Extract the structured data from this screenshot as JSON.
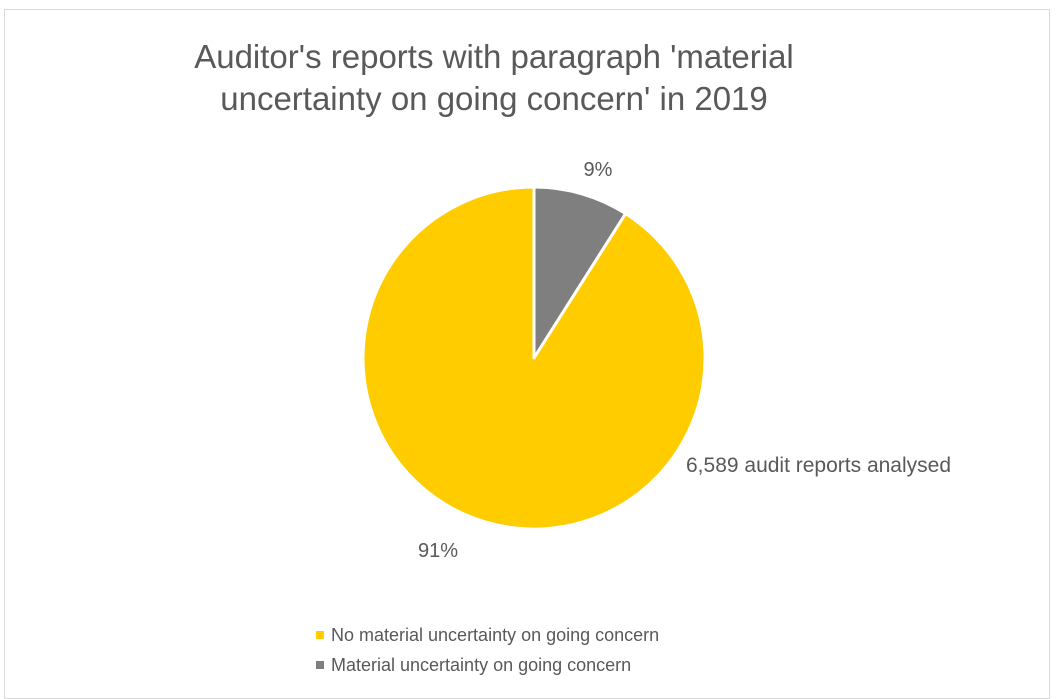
{
  "chart_data": {
    "type": "pie",
    "title_lines": [
      "Auditor's reports with paragraph 'material",
      "uncertainty on going concern' in 2019"
    ],
    "slices": [
      {
        "name": "Material uncertainty on going concern",
        "value": 9,
        "label": "9%",
        "color": "#7f7f7f"
      },
      {
        "name": "No material uncertainty on going concern",
        "value": 91,
        "label": "91%",
        "color": "#ffcc00"
      }
    ],
    "annotation": "6,589 audit reports analysed",
    "legend": {
      "position": "bottom",
      "items": [
        {
          "label": "No material uncertainty on going concern",
          "color": "#ffcc00"
        },
        {
          "label": "Material uncertainty on going concern",
          "color": "#7f7f7f"
        }
      ]
    }
  }
}
